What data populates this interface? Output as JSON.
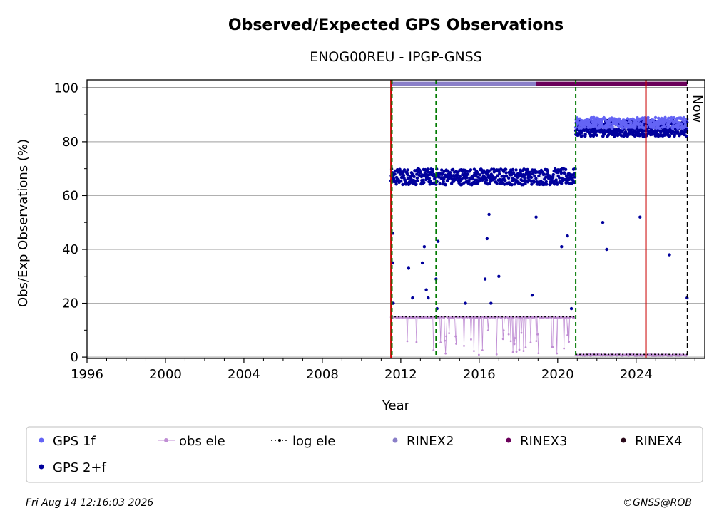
{
  "chart_data": {
    "type": "scatter",
    "title": "Observed/Expected GPS Observations",
    "subtitle": "ENOG00REU - IPGP-GNSS",
    "xlabel": "Year",
    "ylabel": "Obs/Exp Observations (%)",
    "xlim": [
      1996,
      2027.5
    ],
    "ylim": [
      -0.5,
      103
    ],
    "x_ticks": [
      1996,
      2000,
      2004,
      2008,
      2012,
      2016,
      2020,
      2024
    ],
    "y_ticks": [
      0,
      20,
      40,
      60,
      80,
      100
    ],
    "grid": "horizontal",
    "now_label": "Now",
    "now_x": 2026.62,
    "reference_line_y": 100,
    "vertical_lines": {
      "green_dashed": [
        2011.55,
        2013.8,
        2020.92
      ],
      "red_solid": [
        2011.5,
        2024.5
      ],
      "black_dashed_now": [
        2026.62
      ]
    },
    "series": [
      {
        "name": "GPS 2+f",
        "color": "#00009c",
        "segments": [
          {
            "x_start": 2011.5,
            "x_end": 2020.9,
            "typical_y": [
              64,
              70
            ]
          },
          {
            "x_start": 2020.92,
            "x_end": 2026.6,
            "typical_y": [
              82,
              88
            ]
          }
        ],
        "outliers": [
          {
            "x": 2011.6,
            "y": 46
          },
          {
            "x": 2011.6,
            "y": 35
          },
          {
            "x": 2011.62,
            "y": 20
          },
          {
            "x": 2012.4,
            "y": 33
          },
          {
            "x": 2012.6,
            "y": 22
          },
          {
            "x": 2013.1,
            "y": 35
          },
          {
            "x": 2013.2,
            "y": 41
          },
          {
            "x": 2013.3,
            "y": 25
          },
          {
            "x": 2013.4,
            "y": 22
          },
          {
            "x": 2013.8,
            "y": 29
          },
          {
            "x": 2013.9,
            "y": 43
          },
          {
            "x": 2013.85,
            "y": 18
          },
          {
            "x": 2015.3,
            "y": 20
          },
          {
            "x": 2016.3,
            "y": 29
          },
          {
            "x": 2016.4,
            "y": 44
          },
          {
            "x": 2016.5,
            "y": 53
          },
          {
            "x": 2016.6,
            "y": 20
          },
          {
            "x": 2017.0,
            "y": 30
          },
          {
            "x": 2018.7,
            "y": 23
          },
          {
            "x": 2018.9,
            "y": 52
          },
          {
            "x": 2020.2,
            "y": 41
          },
          {
            "x": 2020.5,
            "y": 45
          },
          {
            "x": 2020.7,
            "y": 18
          },
          {
            "x": 2022.3,
            "y": 50
          },
          {
            "x": 2022.5,
            "y": 40
          },
          {
            "x": 2024.2,
            "y": 52
          },
          {
            "x": 2025.7,
            "y": 38
          },
          {
            "x": 2026.6,
            "y": 22
          }
        ]
      },
      {
        "name": "GPS 1f",
        "color": "#6464f5",
        "segments": [
          {
            "x_start": 2020.92,
            "x_end": 2026.6,
            "typical_y": [
              85,
              89
            ]
          }
        ]
      },
      {
        "name": "obs ele",
        "color": "#c08ed4",
        "segments": [
          {
            "x_start": 2011.5,
            "x_end": 2020.9,
            "typical_y": [
              14.5,
              15
            ]
          },
          {
            "x_start": 2020.92,
            "x_end": 2026.6,
            "typical_y": [
              0.5,
              1
            ]
          }
        ]
      },
      {
        "name": "log ele",
        "color": "#000000",
        "segments": [
          {
            "x_start": 2011.5,
            "x_end": 2020.9,
            "y": 15
          },
          {
            "x_start": 2020.92,
            "x_end": 2026.6,
            "y": 1
          }
        ]
      },
      {
        "name": "RINEX2",
        "color": "#8a7fc8",
        "segments": [
          {
            "x_start": 2011.5,
            "x_end": 2018.9,
            "y": 101.5
          }
        ]
      },
      {
        "name": "RINEX3",
        "color": "#6a005a",
        "segments": [
          {
            "x_start": 2018.9,
            "x_end": 2026.6,
            "y": 101.5
          }
        ]
      },
      {
        "name": "RINEX4",
        "color": "#2a0a1a",
        "segments": []
      }
    ],
    "legend": {
      "placement": "bottom",
      "items": [
        {
          "label": "GPS 1f",
          "color": "#6464f5",
          "marker": "dot"
        },
        {
          "label": "obs ele",
          "color": "#c08ed4",
          "marker": "line-dot"
        },
        {
          "label": "log ele",
          "color": "#000000",
          "marker": "dotted-line"
        },
        {
          "label": "RINEX2",
          "color": "#8a7fc8",
          "marker": "dot"
        },
        {
          "label": "RINEX3",
          "color": "#6a005a",
          "marker": "dot"
        },
        {
          "label": "RINEX4",
          "color": "#2a0a1a",
          "marker": "dot"
        },
        {
          "label": "GPS 2+f",
          "color": "#00009c",
          "marker": "dot"
        }
      ]
    }
  },
  "footer": {
    "timestamp": "Fri Aug 14 12:16:03 2026",
    "credit": "©GNSS@ROB"
  }
}
